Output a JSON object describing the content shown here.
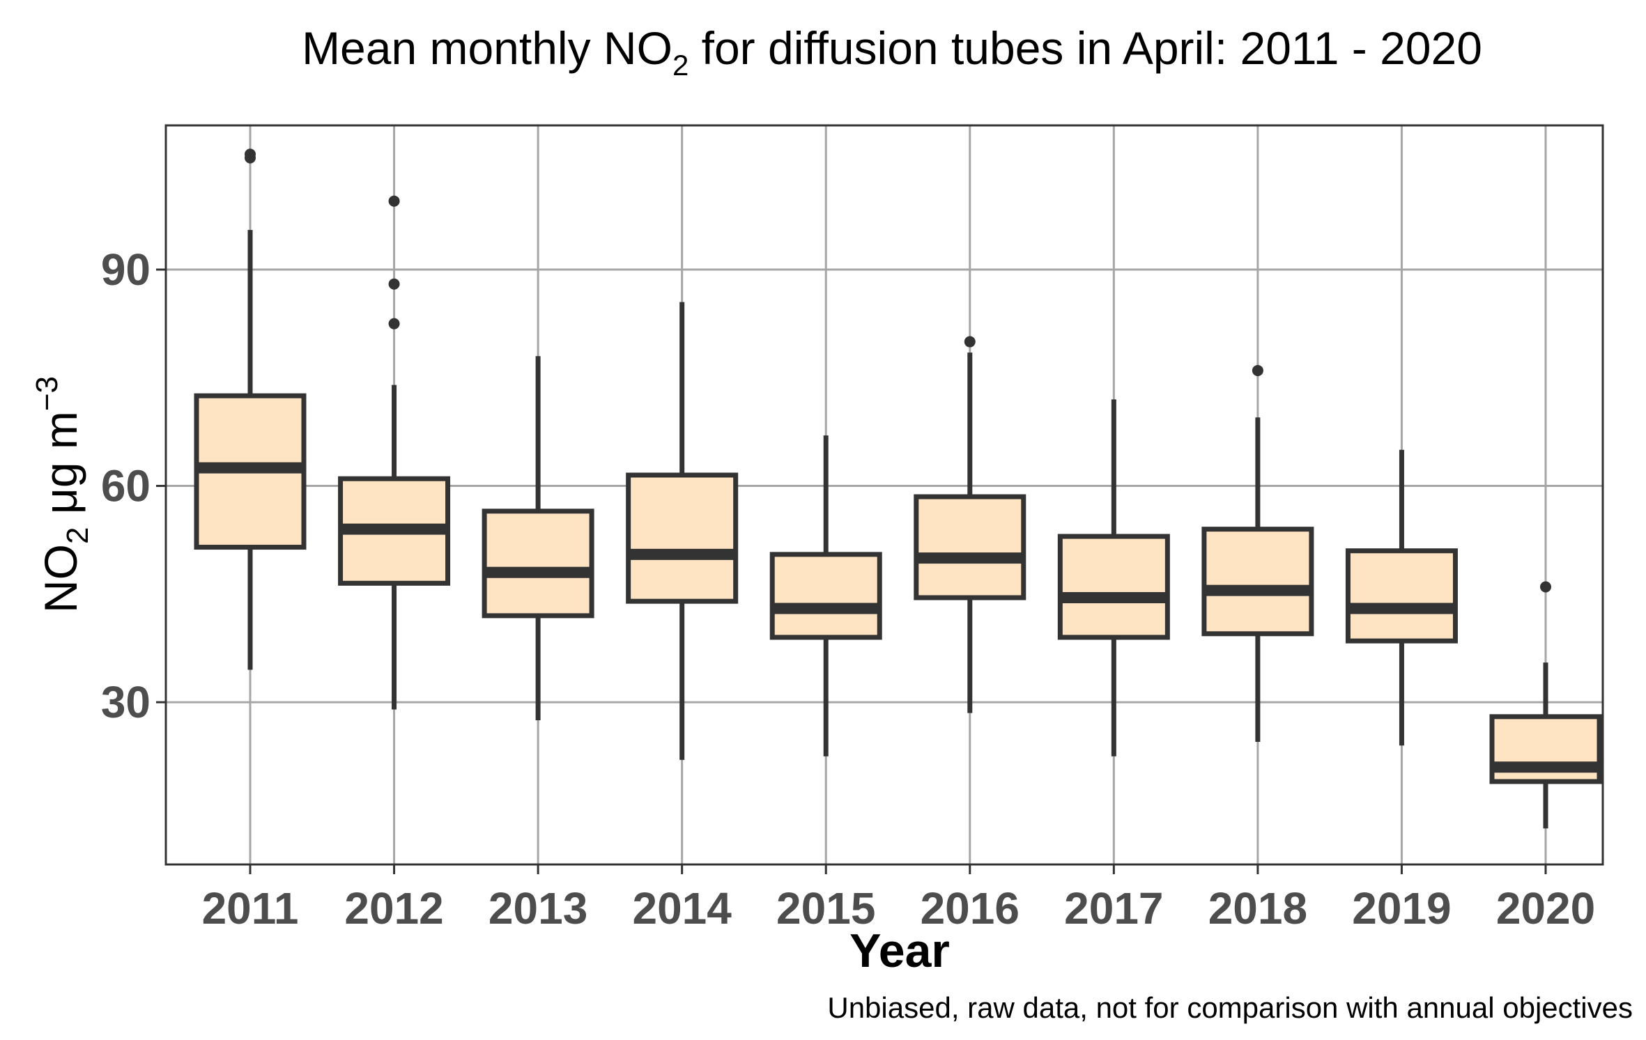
{
  "chart_data": {
    "type": "box",
    "title": {
      "prefix": "Mean monthly NO",
      "subscript": "2",
      "suffix": " for diffusion tubes in April: 2011 - 2020"
    },
    "xlabel": "Year",
    "ylabel": {
      "prefix": "NO",
      "subscript": "2",
      "middle": " μg m",
      "superscript": "−3"
    },
    "caption": "Unbiased, raw data, not for comparison with annual objectives",
    "ylim": [
      7.5,
      110
    ],
    "y_ticks": [
      30,
      60,
      90
    ],
    "grid": true,
    "categories": [
      "2011",
      "2012",
      "2013",
      "2014",
      "2015",
      "2016",
      "2017",
      "2018",
      "2019",
      "2020"
    ],
    "boxes": [
      {
        "whisker_low": 34.5,
        "q1": 51.5,
        "median": 62.5,
        "q3": 72.5,
        "whisker_high": 95.5,
        "outliers": [
          105.5,
          106.0
        ]
      },
      {
        "whisker_low": 29.0,
        "q1": 46.5,
        "median": 54.0,
        "q3": 61.0,
        "whisker_high": 74.0,
        "outliers": [
          82.5,
          88.0,
          99.5
        ]
      },
      {
        "whisker_low": 27.5,
        "q1": 42.0,
        "median": 48.0,
        "q3": 56.5,
        "whisker_high": 78.0,
        "outliers": []
      },
      {
        "whisker_low": 22.0,
        "q1": 44.0,
        "median": 50.5,
        "q3": 61.5,
        "whisker_high": 85.5,
        "outliers": []
      },
      {
        "whisker_low": 22.5,
        "q1": 39.0,
        "median": 43.0,
        "q3": 50.5,
        "whisker_high": 67.0,
        "outliers": []
      },
      {
        "whisker_low": 28.5,
        "q1": 44.5,
        "median": 50.0,
        "q3": 58.5,
        "whisker_high": 78.5,
        "outliers": [
          80.0
        ]
      },
      {
        "whisker_low": 22.5,
        "q1": 39.0,
        "median": 44.5,
        "q3": 53.0,
        "whisker_high": 72.0,
        "outliers": []
      },
      {
        "whisker_low": 24.5,
        "q1": 39.5,
        "median": 45.5,
        "q3": 54.0,
        "whisker_high": 69.5,
        "outliers": [
          76.0
        ]
      },
      {
        "whisker_low": 24.0,
        "q1": 38.5,
        "median": 43.0,
        "q3": 51.0,
        "whisker_high": 65.0,
        "outliers": []
      },
      {
        "whisker_low": 12.5,
        "q1": 19.0,
        "median": 21.0,
        "q3": 28.0,
        "whisker_high": 35.5,
        "outliers": [
          46.0
        ]
      }
    ],
    "box_fill": "#ffe4c4",
    "box_stroke": "#333333",
    "grid_color": "#a6a6a6"
  }
}
